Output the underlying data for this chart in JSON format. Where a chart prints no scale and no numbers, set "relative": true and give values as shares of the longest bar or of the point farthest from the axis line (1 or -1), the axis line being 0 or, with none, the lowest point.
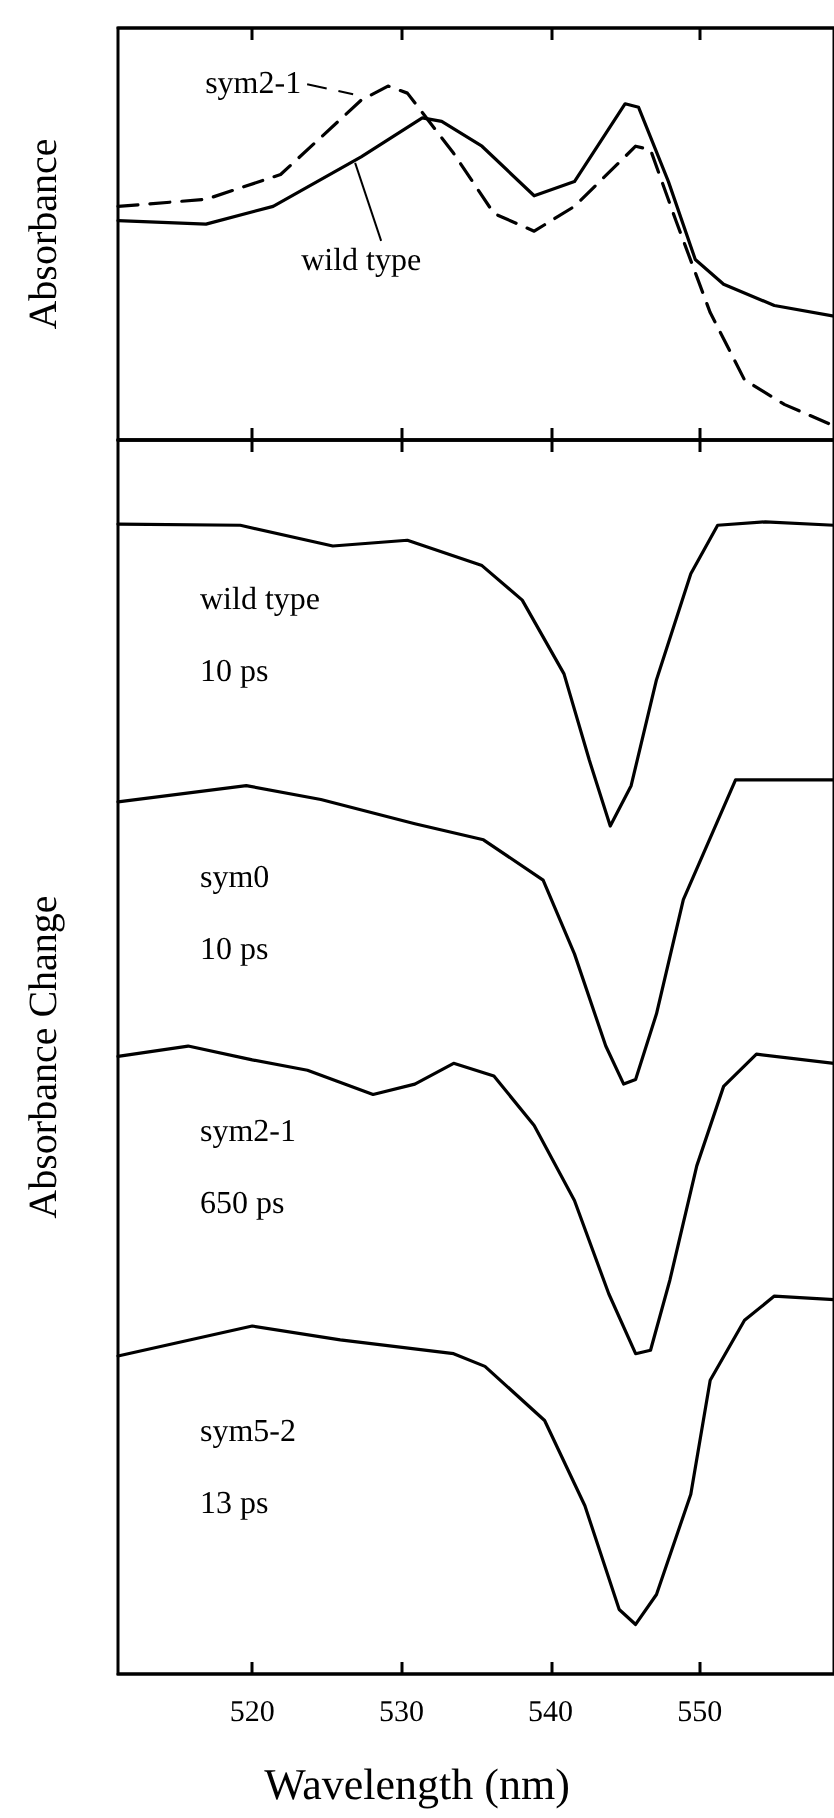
{
  "chart_data": [
    {
      "type": "line",
      "ylabel": "Absorbance",
      "relative": true,
      "xlim": [
        511,
        559
      ],
      "xticks": [
        520,
        530,
        540,
        550
      ],
      "tick_labels": false,
      "series": [
        {
          "name": "wild type",
          "color": "#000000",
          "line_style": "solid",
          "x": [
            511,
            516.9,
            521.4,
            527.3,
            531.4,
            532.7,
            535.4,
            538.9,
            541.6,
            545.0,
            545.9,
            547.9,
            549.7,
            551.6,
            555.0,
            559
          ],
          "values": [
            0.62,
            0.61,
            0.66,
            0.8,
            0.91,
            0.9,
            0.83,
            0.69,
            0.73,
            0.95,
            0.94,
            0.73,
            0.51,
            0.44,
            0.38,
            0.35
          ]
        },
        {
          "name": "sym2-1",
          "color": "#000000",
          "line_style": "dashed",
          "x": [
            511,
            516.9,
            521.9,
            527.3,
            529.1,
            530.4,
            533.5,
            536.2,
            538.9,
            541.6,
            545.7,
            546.7,
            548.4,
            550.7,
            553.0,
            555.7,
            559
          ],
          "values": [
            0.66,
            0.68,
            0.75,
            0.96,
            1,
            0.98,
            0.81,
            0.64,
            0.59,
            0.66,
            0.83,
            0.82,
            0.62,
            0.36,
            0.17,
            0.1,
            0.04
          ]
        }
      ]
    },
    {
      "type": "line",
      "xlabel": "Wavelength (nm)",
      "ylabel": "Absorbance Change",
      "relative": true,
      "xlim": [
        511,
        559
      ],
      "xticks": [
        520,
        530,
        540,
        550
      ],
      "tick_labels": "x",
      "annotations": [
        "10 ps",
        "10 ps",
        "650 ps",
        "13 ps"
      ],
      "series": [
        {
          "name": "wild type",
          "color": "#000000",
          "line_style": "solid",
          "x": [
            511,
            519.2,
            525.4,
            530.4,
            535.4,
            538.1,
            540.9,
            542.6,
            544.0,
            545.4,
            547.1,
            549.4,
            551.2,
            554.4,
            559
          ],
          "values": [
            0.998,
            0.997,
            0.979,
            0.984,
            0.962,
            0.932,
            0.868,
            0.793,
            0.736,
            0.771,
            0.863,
            0.955,
            0.997,
            1,
            0.997
          ]
        },
        {
          "name": "sym0",
          "color": "#000000",
          "line_style": "solid",
          "x": [
            511,
            519.6,
            524.6,
            530.9,
            535.5,
            539.5,
            541.6,
            543.7,
            544.9,
            545.7,
            547.1,
            548.9,
            552.4,
            559
          ],
          "values": [
            0.757,
            0.771,
            0.759,
            0.738,
            0.724,
            0.689,
            0.625,
            0.545,
            0.512,
            0.516,
            0.573,
            0.672,
            0.776,
            0.776
          ]
        },
        {
          "name": "sym2-1",
          "color": "#000000",
          "line_style": "solid",
          "x": [
            511,
            515.7,
            520.0,
            523.7,
            528.1,
            530.9,
            533.5,
            536.2,
            538.9,
            541.6,
            543.9,
            545.7,
            546.7,
            548.0,
            549.8,
            551.6,
            553.8,
            559
          ],
          "values": [
            0.536,
            0.545,
            0.533,
            0.524,
            0.503,
            0.512,
            0.53,
            0.519,
            0.476,
            0.411,
            0.33,
            0.278,
            0.281,
            0.342,
            0.441,
            0.51,
            0.538,
            0.53
          ]
        },
        {
          "name": "sym5-2",
          "color": "#000000",
          "line_style": "solid",
          "x": [
            511,
            520,
            525.9,
            533.5,
            535.6,
            539.6,
            542.3,
            544.6,
            545.7,
            547.1,
            549.4,
            550.7,
            553.0,
            555.0,
            559
          ],
          "values": [
            0.276,
            0.302,
            0.29,
            0.278,
            0.267,
            0.22,
            0.146,
            0.056,
            0.043,
            0.069,
            0.156,
            0.255,
            0.307,
            0.328,
            0.325
          ]
        }
      ]
    }
  ]
}
